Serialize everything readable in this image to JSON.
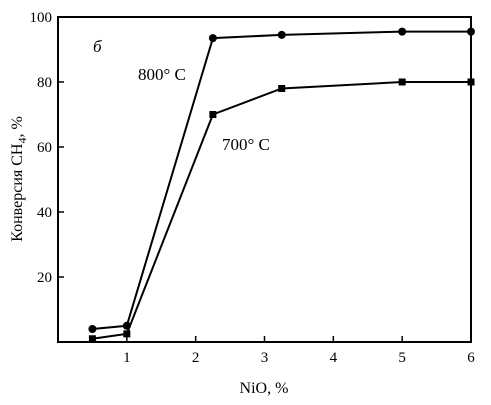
{
  "chart_data": {
    "type": "line",
    "panel_label": "б",
    "xlabel": "NiO, %",
    "ylabel": "Конверсия CH",
    "ylabel_subscript": "4",
    "ylabel_suffix": ", %",
    "xlim": [
      0,
      6
    ],
    "ylim": [
      0,
      100
    ],
    "x_ticks": [
      1,
      2,
      3,
      4,
      5,
      6
    ],
    "y_ticks": [
      20,
      40,
      60,
      80,
      100
    ],
    "grid": false,
    "series": [
      {
        "name": "800° C",
        "marker": "circle",
        "x": [
          0.5,
          1.0,
          2.25,
          3.25,
          5.0,
          6.0
        ],
        "y": [
          4,
          5,
          93.5,
          94.5,
          95.5,
          95.5
        ]
      },
      {
        "name": "700° C",
        "marker": "square",
        "x": [
          0.5,
          1.0,
          2.25,
          3.25,
          5.0,
          6.0
        ],
        "y": [
          1,
          2.5,
          70,
          78,
          80,
          80
        ]
      }
    ]
  }
}
